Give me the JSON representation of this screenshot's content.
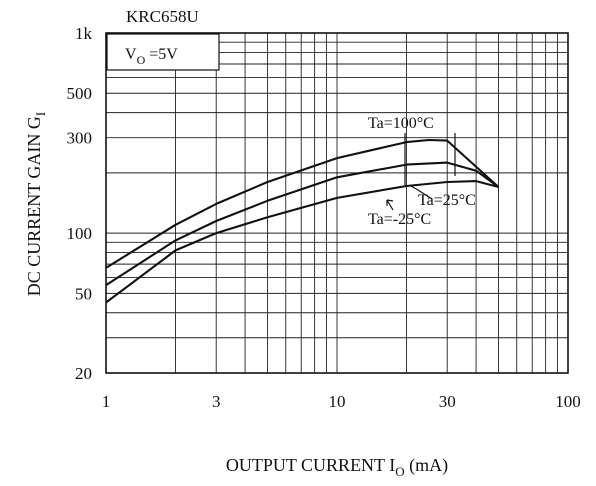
{
  "chart_data": {
    "type": "line",
    "title": "KRC658U",
    "condition": "VO=5V",
    "xlabel": "OUTPUT CURRENT IO (mA)",
    "ylabel": "DC CURRENT GAIN GI",
    "xscale": "log",
    "yscale": "log",
    "xlim": [
      1,
      100
    ],
    "ylim": [
      20,
      1000
    ],
    "grid": true,
    "x_ticks": [
      1,
      3,
      10,
      30,
      100
    ],
    "x_tick_labels": [
      "1",
      "3",
      "10",
      "30",
      "100"
    ],
    "y_ticks": [
      20,
      50,
      100,
      300,
      500,
      1000
    ],
    "y_tick_labels": [
      "20",
      "50",
      "100",
      "300",
      "500",
      "1k"
    ],
    "series": [
      {
        "name": "Ta=100°C",
        "x": [
          1,
          2,
          3,
          5,
          10,
          20,
          25,
          30,
          50
        ],
        "y": [
          67,
          110,
          140,
          180,
          237,
          285,
          292,
          290,
          170
        ]
      },
      {
        "name": "Ta=25°C",
        "x": [
          1,
          2,
          3,
          5,
          10,
          20,
          30,
          40,
          50
        ],
        "y": [
          55,
          92,
          115,
          145,
          190,
          220,
          225,
          205,
          170
        ]
      },
      {
        "name": "Ta=-25°C",
        "x": [
          1,
          2,
          3,
          5,
          10,
          20,
          30,
          40,
          50
        ],
        "y": [
          45,
          82,
          100,
          120,
          150,
          172,
          180,
          182,
          170
        ]
      }
    ]
  }
}
